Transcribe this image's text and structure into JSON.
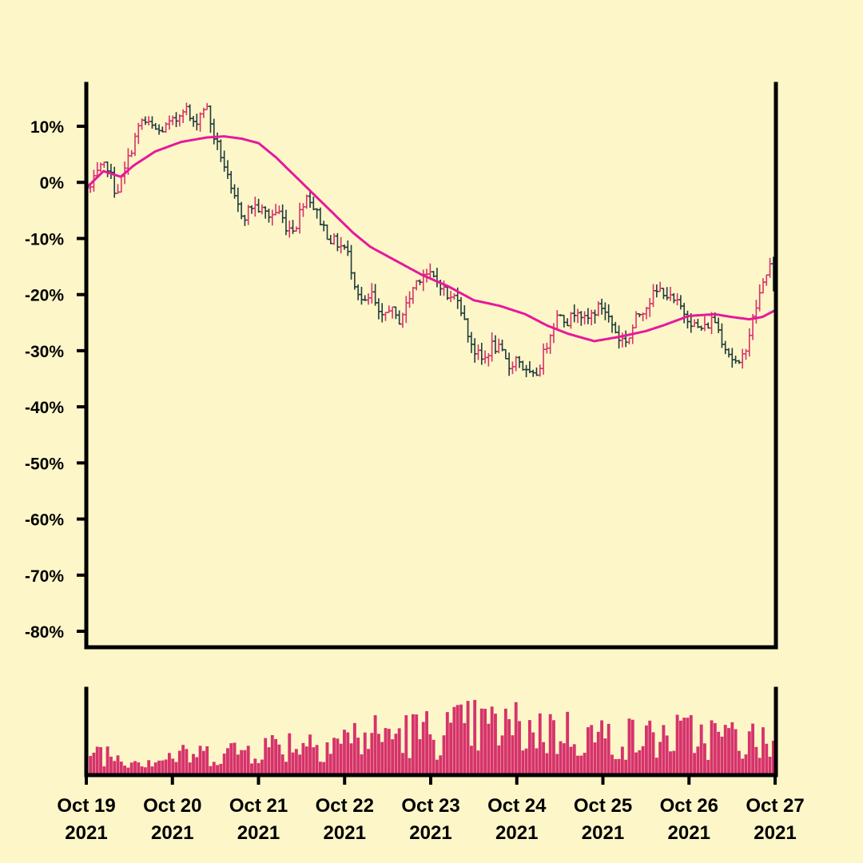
{
  "chart_data": {
    "type": "ohlc",
    "title": "",
    "xlabel": "",
    "ylabel": "",
    "background": "#fdf6c8",
    "colors": {
      "up": "#d6336c",
      "down": "#1f3b3b",
      "moving_average": "#e6199b",
      "volume": "#d6336c"
    },
    "price_axis": {
      "unit": "%",
      "ylim": [
        -82,
        17
      ],
      "ticks": [
        10,
        0,
        -10,
        -20,
        -30,
        -40,
        -50,
        -60,
        -70,
        -80
      ],
      "tick_labels": [
        "10%",
        "0%",
        "-10%",
        "-20%",
        "-30%",
        "-40%",
        "-50%",
        "-60%",
        "-70%",
        "-80%"
      ]
    },
    "x_axis": {
      "start": "2021-10-19",
      "end": "2021-10-27",
      "ticks": [
        {
          "line1": "Oct 19",
          "line2": "2021"
        },
        {
          "line1": "Oct 20",
          "line2": "2021"
        },
        {
          "line1": "Oct 21",
          "line2": "2021"
        },
        {
          "line1": "Oct 22",
          "line2": "2021"
        },
        {
          "line1": "Oct 23",
          "line2": "2021"
        },
        {
          "line1": "Oct 24",
          "line2": "2021"
        },
        {
          "line1": "Oct 25",
          "line2": "2021"
        },
        {
          "line1": "Oct 26",
          "line2": "2021"
        },
        {
          "line1": "Oct 27",
          "line2": "2021"
        }
      ]
    },
    "close_path": [
      [
        0.0,
        -1
      ],
      [
        0.1,
        2
      ],
      [
        0.2,
        3
      ],
      [
        0.3,
        -2
      ],
      [
        0.4,
        2
      ],
      [
        0.5,
        7
      ],
      [
        0.6,
        11
      ],
      [
        0.7,
        10
      ],
      [
        0.8,
        9
      ],
      [
        0.9,
        10
      ],
      [
        1.0,
        11
      ],
      [
        1.1,
        14
      ],
      [
        1.2,
        10
      ],
      [
        1.35,
        14
      ],
      [
        1.45,
        8
      ],
      [
        1.55,
        4
      ],
      [
        1.65,
        -2
      ],
      [
        1.75,
        -5
      ],
      [
        1.8,
        -6
      ],
      [
        1.9,
        -4
      ],
      [
        2.0,
        -5
      ],
      [
        2.1,
        -6
      ],
      [
        2.2,
        -5
      ],
      [
        2.3,
        -8
      ],
      [
        2.4,
        -8
      ],
      [
        2.5,
        -3
      ],
      [
        2.55,
        -2
      ],
      [
        2.6,
        -4
      ],
      [
        2.7,
        -7
      ],
      [
        2.8,
        -10
      ],
      [
        3.0,
        -12
      ],
      [
        3.1,
        -18
      ],
      [
        3.2,
        -22
      ],
      [
        3.3,
        -20
      ],
      [
        3.4,
        -25
      ],
      [
        3.5,
        -22
      ],
      [
        3.6,
        -25
      ],
      [
        3.7,
        -22
      ],
      [
        3.8,
        -18
      ],
      [
        3.9,
        -16
      ],
      [
        4.0,
        -17
      ],
      [
        4.1,
        -18
      ],
      [
        4.2,
        -21
      ],
      [
        4.3,
        -20
      ],
      [
        4.4,
        -26
      ],
      [
        4.5,
        -30
      ],
      [
        4.6,
        -32
      ],
      [
        4.7,
        -29
      ],
      [
        4.8,
        -30
      ],
      [
        4.9,
        -33
      ],
      [
        5.0,
        -31
      ],
      [
        5.1,
        -34
      ],
      [
        5.2,
        -35
      ],
      [
        5.3,
        -31
      ],
      [
        5.4,
        -26
      ],
      [
        5.5,
        -23
      ],
      [
        5.6,
        -25
      ],
      [
        5.7,
        -22
      ],
      [
        5.8,
        -25
      ],
      [
        5.9,
        -23
      ],
      [
        6.0,
        -22
      ],
      [
        6.1,
        -25
      ],
      [
        6.2,
        -28
      ],
      [
        6.3,
        -28
      ],
      [
        6.4,
        -24
      ],
      [
        6.5,
        -22
      ],
      [
        6.6,
        -20
      ],
      [
        6.7,
        -19
      ],
      [
        6.8,
        -21
      ],
      [
        6.9,
        -22
      ],
      [
        7.0,
        -24
      ],
      [
        7.1,
        -26
      ],
      [
        7.2,
        -26
      ],
      [
        7.3,
        -24
      ],
      [
        7.4,
        -28
      ],
      [
        7.5,
        -31
      ],
      [
        7.6,
        -33
      ],
      [
        7.7,
        -28
      ],
      [
        7.8,
        -22
      ],
      [
        7.9,
        -17
      ],
      [
        7.95,
        -14
      ],
      [
        8.0,
        -19
      ]
    ],
    "moving_average": [
      [
        0.0,
        -1
      ],
      [
        0.2,
        2
      ],
      [
        0.3,
        1.5
      ],
      [
        0.4,
        1
      ],
      [
        0.55,
        3
      ],
      [
        0.8,
        5.5
      ],
      [
        1.1,
        7.2
      ],
      [
        1.4,
        8
      ],
      [
        1.6,
        8.2
      ],
      [
        1.8,
        7.8
      ],
      [
        2.0,
        7
      ],
      [
        2.2,
        4.5
      ],
      [
        2.5,
        0
      ],
      [
        2.8,
        -4.5
      ],
      [
        3.1,
        -9
      ],
      [
        3.3,
        -11.5
      ],
      [
        3.6,
        -14
      ],
      [
        3.9,
        -16.5
      ],
      [
        4.2,
        -18.5
      ],
      [
        4.5,
        -21
      ],
      [
        4.8,
        -22
      ],
      [
        5.1,
        -23.5
      ],
      [
        5.35,
        -25.5
      ],
      [
        5.6,
        -27
      ],
      [
        5.9,
        -28.3
      ],
      [
        6.2,
        -27.5
      ],
      [
        6.5,
        -26.5
      ],
      [
        6.7,
        -25.5
      ],
      [
        7.0,
        -23.8
      ],
      [
        7.3,
        -23.5
      ],
      [
        7.5,
        -24
      ],
      [
        7.7,
        -24.4
      ],
      [
        7.85,
        -24
      ],
      [
        8.0,
        -22.8
      ]
    ],
    "bar_count": 200,
    "volume_profile": [
      [
        0.0,
        0.45
      ],
      [
        0.3,
        0.3
      ],
      [
        0.6,
        0.22
      ],
      [
        1.0,
        0.3
      ],
      [
        1.5,
        0.35
      ],
      [
        2.0,
        0.45
      ],
      [
        2.5,
        0.55
      ],
      [
        3.0,
        0.6
      ],
      [
        3.5,
        0.68
      ],
      [
        4.0,
        0.7
      ],
      [
        4.5,
        0.8
      ],
      [
        5.0,
        0.78
      ],
      [
        5.5,
        0.72
      ],
      [
        6.0,
        0.62
      ],
      [
        6.5,
        0.6
      ],
      [
        7.0,
        0.66
      ],
      [
        7.5,
        0.62
      ],
      [
        8.0,
        0.5
      ]
    ]
  }
}
